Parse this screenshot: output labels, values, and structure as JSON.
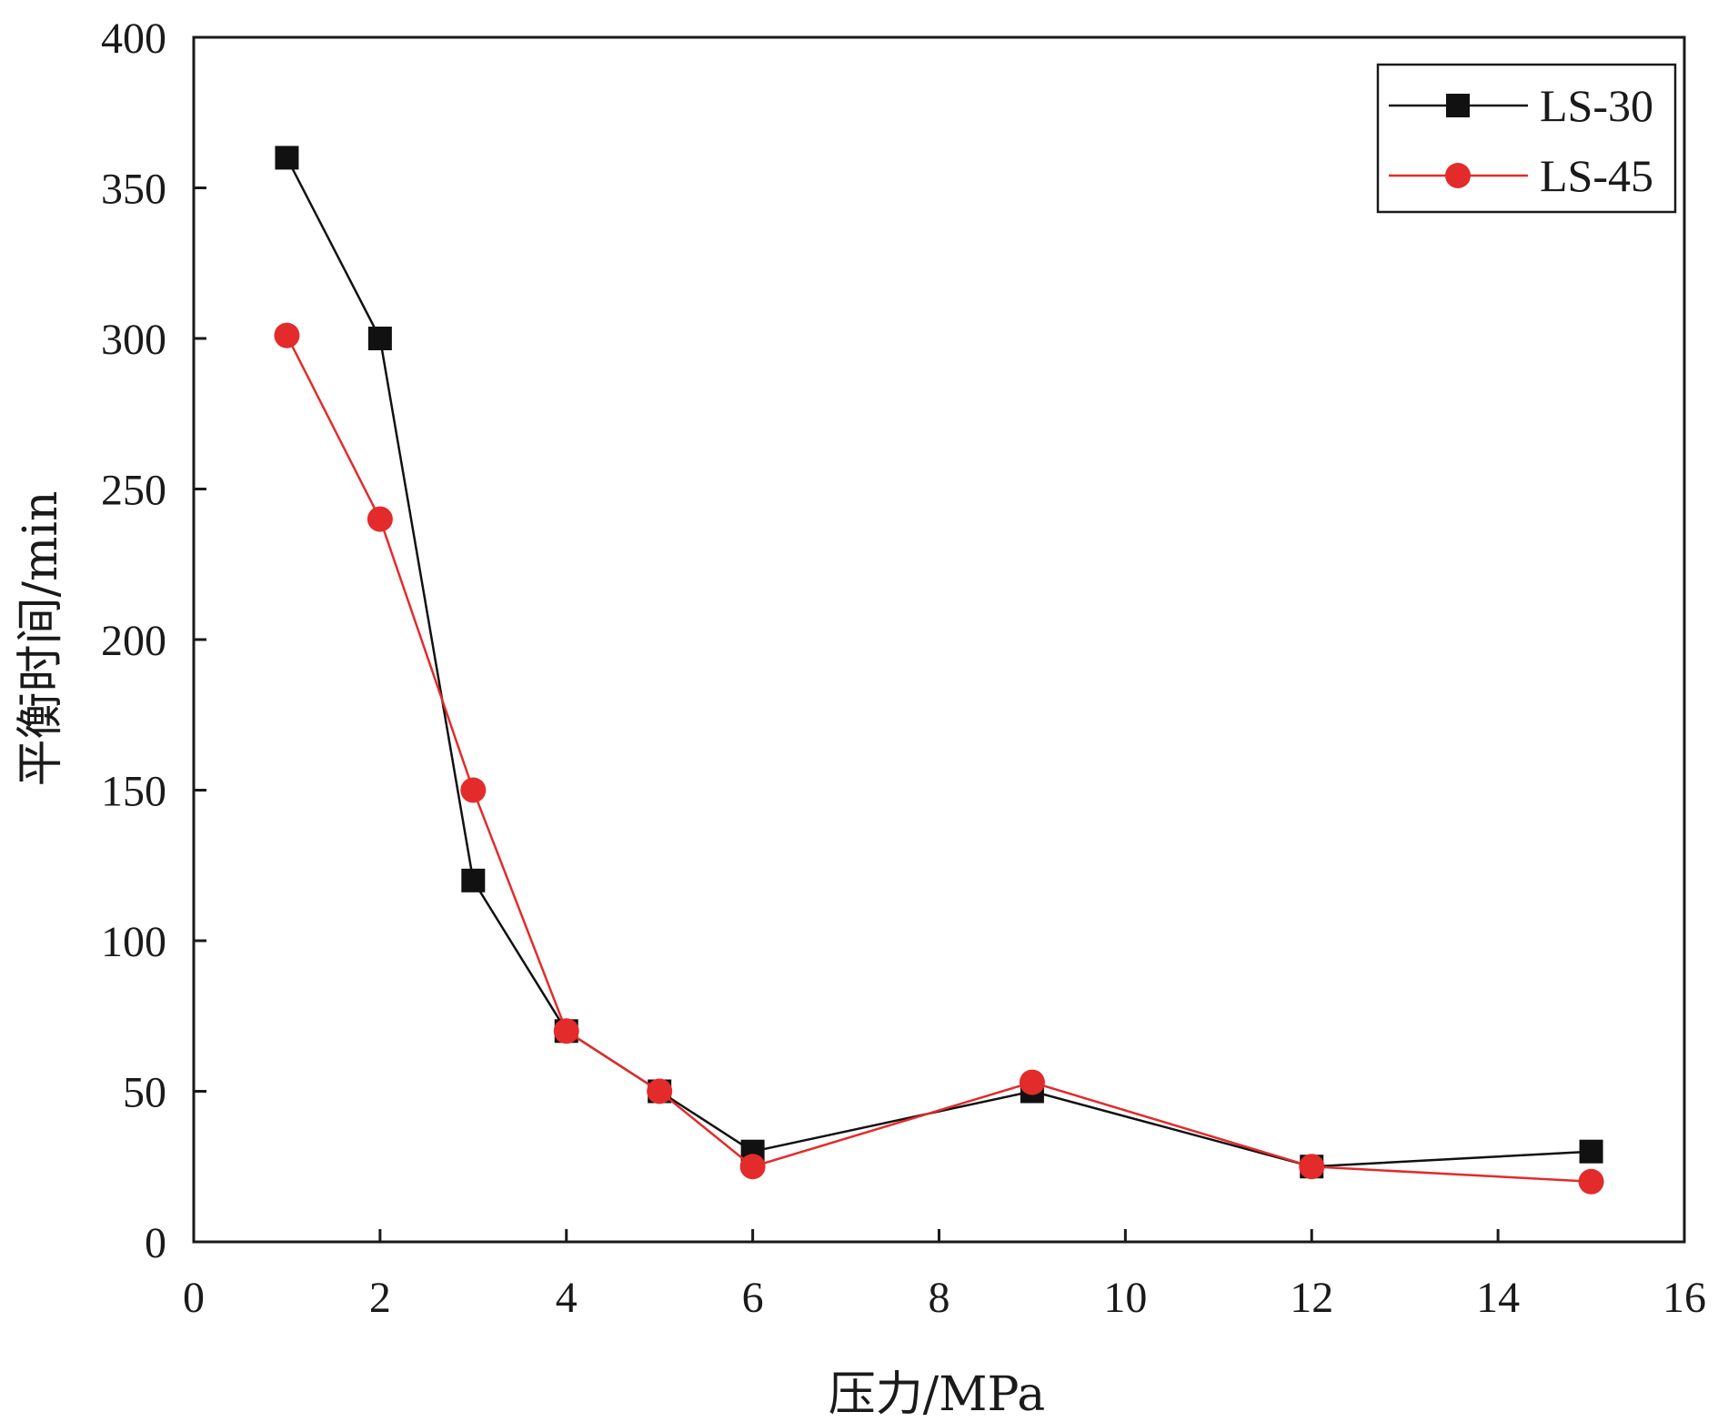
{
  "chart_data": {
    "type": "line",
    "xlabel": "压力/MPa",
    "ylabel": "平衡时间/min",
    "xlim": [
      0,
      16
    ],
    "ylim": [
      0,
      400
    ],
    "xticks": [
      0,
      2,
      4,
      6,
      8,
      10,
      12,
      14,
      16
    ],
    "yticks": [
      0,
      50,
      100,
      150,
      200,
      250,
      300,
      350,
      400
    ],
    "x": [
      1,
      2,
      3,
      4,
      5,
      6,
      9,
      12,
      15
    ],
    "grid": false,
    "legend_position": "top-right",
    "series": [
      {
        "name": "LS-30",
        "color": "#111111",
        "marker": "square",
        "values": [
          360,
          300,
          120,
          70,
          50,
          30,
          50,
          25,
          30
        ]
      },
      {
        "name": "LS-45",
        "color": "#e32b2b",
        "marker": "circle",
        "values": [
          301,
          240,
          150,
          70,
          50,
          25,
          53,
          25,
          20
        ]
      }
    ]
  }
}
